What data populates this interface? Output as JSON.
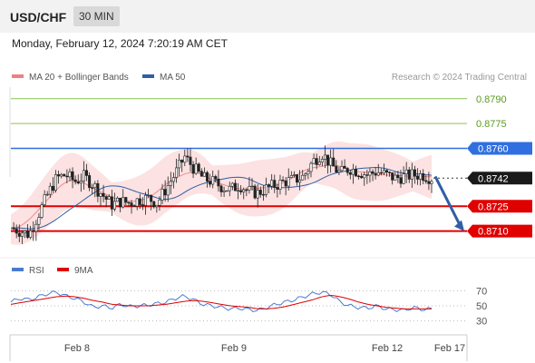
{
  "header": {
    "symbol": "USD/CHF",
    "timeframe": "30 MIN",
    "datetime": "Monday, February 12, 2024 7:20:19 AM CET"
  },
  "legend": {
    "price": [
      {
        "name": "MA 20 + Bollinger Bands",
        "color": "#f08080"
      },
      {
        "name": "MA 50",
        "color": "#2f5fa5"
      }
    ],
    "rsi": [
      {
        "name": "RSI",
        "color": "#4a7bd0"
      },
      {
        "name": "9MA",
        "color": "#e00000"
      }
    ]
  },
  "credit": "Research © 2024 Trading Central",
  "chart_data": [
    {
      "type": "candlestick",
      "title": "",
      "ylim": [
        0.8695,
        0.8797
      ],
      "x_ticks": [
        "Feb 8",
        "Feb 9",
        "Feb 12",
        "Feb 17"
      ],
      "price_levels": [
        {
          "label": "0.8790",
          "value": 0.879,
          "style": "green-line"
        },
        {
          "label": "0.8775",
          "value": 0.8775,
          "style": "green-line"
        },
        {
          "label": "0.8760",
          "value": 0.876,
          "style": "blue-tag"
        },
        {
          "label": "0.8742",
          "value": 0.8742,
          "style": "current-price"
        },
        {
          "label": "0.8725",
          "value": 0.8725,
          "style": "red-tag"
        },
        {
          "label": "0.8710",
          "value": 0.871,
          "style": "red-tag"
        }
      ],
      "forecast_arrow": {
        "from": 0.8743,
        "to": 0.871
      },
      "close_path": [
        [
          0,
          0.8712
        ],
        [
          4,
          0.871
        ],
        [
          8,
          0.8708
        ],
        [
          12,
          0.872
        ],
        [
          16,
          0.8732
        ],
        [
          20,
          0.8742
        ],
        [
          24,
          0.8744
        ],
        [
          28,
          0.874
        ],
        [
          32,
          0.8743
        ],
        [
          36,
          0.8738
        ],
        [
          40,
          0.8732
        ],
        [
          44,
          0.8726
        ],
        [
          48,
          0.8728
        ],
        [
          52,
          0.8727
        ],
        [
          56,
          0.8729
        ],
        [
          60,
          0.873
        ],
        [
          64,
          0.8727
        ],
        [
          68,
          0.8736
        ],
        [
          72,
          0.8745
        ],
        [
          76,
          0.8755
        ],
        [
          80,
          0.8748
        ],
        [
          84,
          0.8742
        ],
        [
          88,
          0.874
        ],
        [
          92,
          0.8737
        ],
        [
          96,
          0.8735
        ],
        [
          100,
          0.8738
        ],
        [
          104,
          0.8734
        ],
        [
          108,
          0.8733
        ],
        [
          112,
          0.8736
        ],
        [
          116,
          0.8738
        ],
        [
          120,
          0.874
        ],
        [
          124,
          0.8741
        ],
        [
          128,
          0.8743
        ],
        [
          132,
          0.8752
        ],
        [
          136,
          0.8757
        ],
        [
          140,
          0.875
        ],
        [
          144,
          0.8745
        ],
        [
          148,
          0.8748
        ],
        [
          152,
          0.8746
        ],
        [
          156,
          0.8744
        ],
        [
          160,
          0.8746
        ],
        [
          164,
          0.8744
        ],
        [
          168,
          0.8742
        ],
        [
          172,
          0.8743
        ],
        [
          176,
          0.8744
        ],
        [
          180,
          0.8744
        ],
        [
          184,
          0.8742
        ]
      ]
    },
    {
      "type": "line",
      "title": "RSI",
      "ylim": [
        20,
        80
      ],
      "y_ticks": [
        70,
        50,
        30
      ],
      "series": [
        {
          "name": "RSI",
          "values": [
            55,
            60,
            58,
            62,
            66,
            68,
            63,
            60,
            55,
            48,
            50,
            47,
            52,
            49,
            50,
            51,
            53,
            55,
            60,
            63,
            58,
            52,
            50,
            48,
            46,
            47,
            45,
            44,
            48,
            52,
            55,
            58,
            62,
            66,
            68,
            65,
            55,
            50,
            48,
            47,
            50,
            46,
            45,
            44,
            48,
            45,
            46
          ]
        },
        {
          "name": "9MA",
          "values": [
            52,
            54,
            56,
            58,
            60,
            62,
            63,
            62,
            60,
            57,
            55,
            52,
            51,
            50,
            50,
            50,
            51,
            52,
            54,
            56,
            57,
            56,
            54,
            52,
            50,
            49,
            48,
            46,
            46,
            47,
            49,
            52,
            55,
            58,
            62,
            64,
            62,
            59,
            55,
            52,
            50,
            48,
            47,
            46,
            46,
            46,
            46
          ]
        }
      ]
    }
  ]
}
